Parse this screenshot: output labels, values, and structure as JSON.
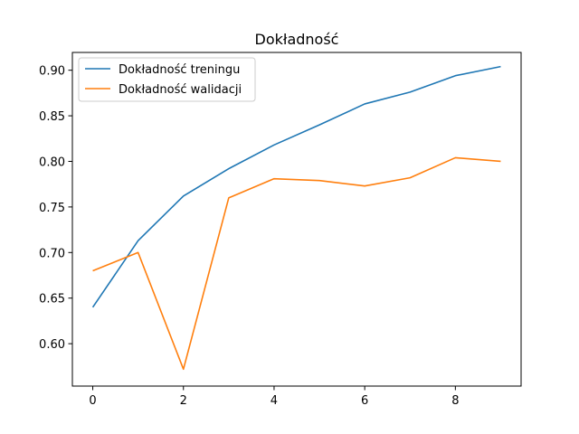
{
  "chart_data": {
    "type": "line",
    "title": "Dokładność",
    "xlabel": "",
    "ylabel": "",
    "x": [
      0,
      1,
      2,
      3,
      4,
      5,
      6,
      7,
      8,
      9
    ],
    "xlim": [
      -0.45,
      9.45
    ],
    "ylim": [
      0.5535,
      0.9195
    ],
    "x_ticks": [
      0,
      2,
      4,
      6,
      8
    ],
    "y_ticks": [
      0.6,
      0.65,
      0.7,
      0.75,
      0.8,
      0.85,
      0.9
    ],
    "y_tick_labels": [
      "0.60",
      "0.65",
      "0.70",
      "0.75",
      "0.80",
      "0.85",
      "0.90"
    ],
    "grid": false,
    "legend_position": "top-left",
    "series": [
      {
        "name": "Dokładność treningu",
        "color": "#1f77b4",
        "values": [
          0.64,
          0.713,
          0.762,
          0.792,
          0.818,
          0.84,
          0.863,
          0.876,
          0.894,
          0.904
        ]
      },
      {
        "name": "Dokładność walidacji",
        "color": "#ff7f0e",
        "values": [
          0.68,
          0.7,
          0.572,
          0.76,
          0.781,
          0.779,
          0.773,
          0.782,
          0.804,
          0.8
        ]
      }
    ]
  }
}
